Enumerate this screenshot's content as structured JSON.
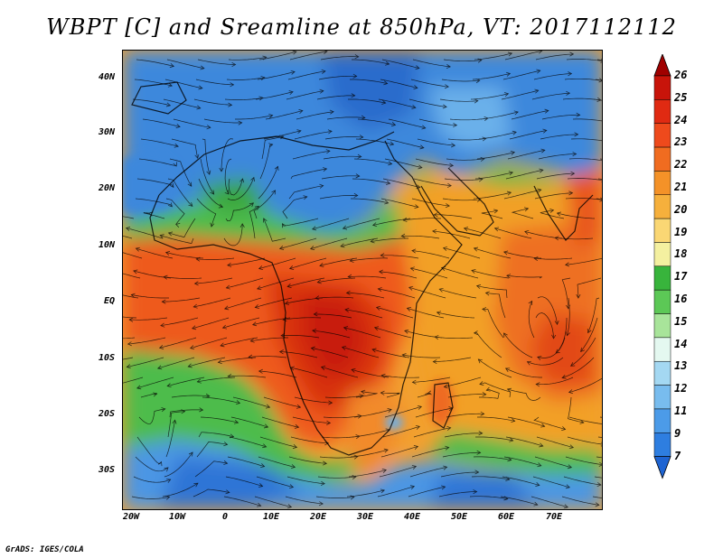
{
  "title": "WBPT [C] and Sreamline at 850hPa, VT: 2017112112",
  "lat_labels": [
    "40N",
    "30N",
    "20N",
    "10N",
    "EQ",
    "10S",
    "20S",
    "30S"
  ],
  "lon_labels": [
    "20W",
    "10W",
    "0",
    "10E",
    "20E",
    "30E",
    "40E",
    "50E",
    "60E",
    "70E"
  ],
  "colorbar": {
    "labels": [
      "26",
      "25",
      "24",
      "23",
      "22",
      "21",
      "20",
      "19",
      "18",
      "17",
      "16",
      "15",
      "14",
      "13",
      "12",
      "11",
      "9",
      "7"
    ],
    "colors": [
      "#a00000",
      "#c8140a",
      "#e02a12",
      "#ee4a1c",
      "#f06c20",
      "#f49228",
      "#f6b03c",
      "#fad774",
      "#f4f0a0",
      "#38b43c",
      "#5cc856",
      "#a8e49a",
      "#e4f8f0",
      "#a4d8f2",
      "#78bcee",
      "#4c9be8",
      "#2e7ee0",
      "#1e64d2"
    ]
  },
  "footer": "GrADS: IGES/COLA"
}
